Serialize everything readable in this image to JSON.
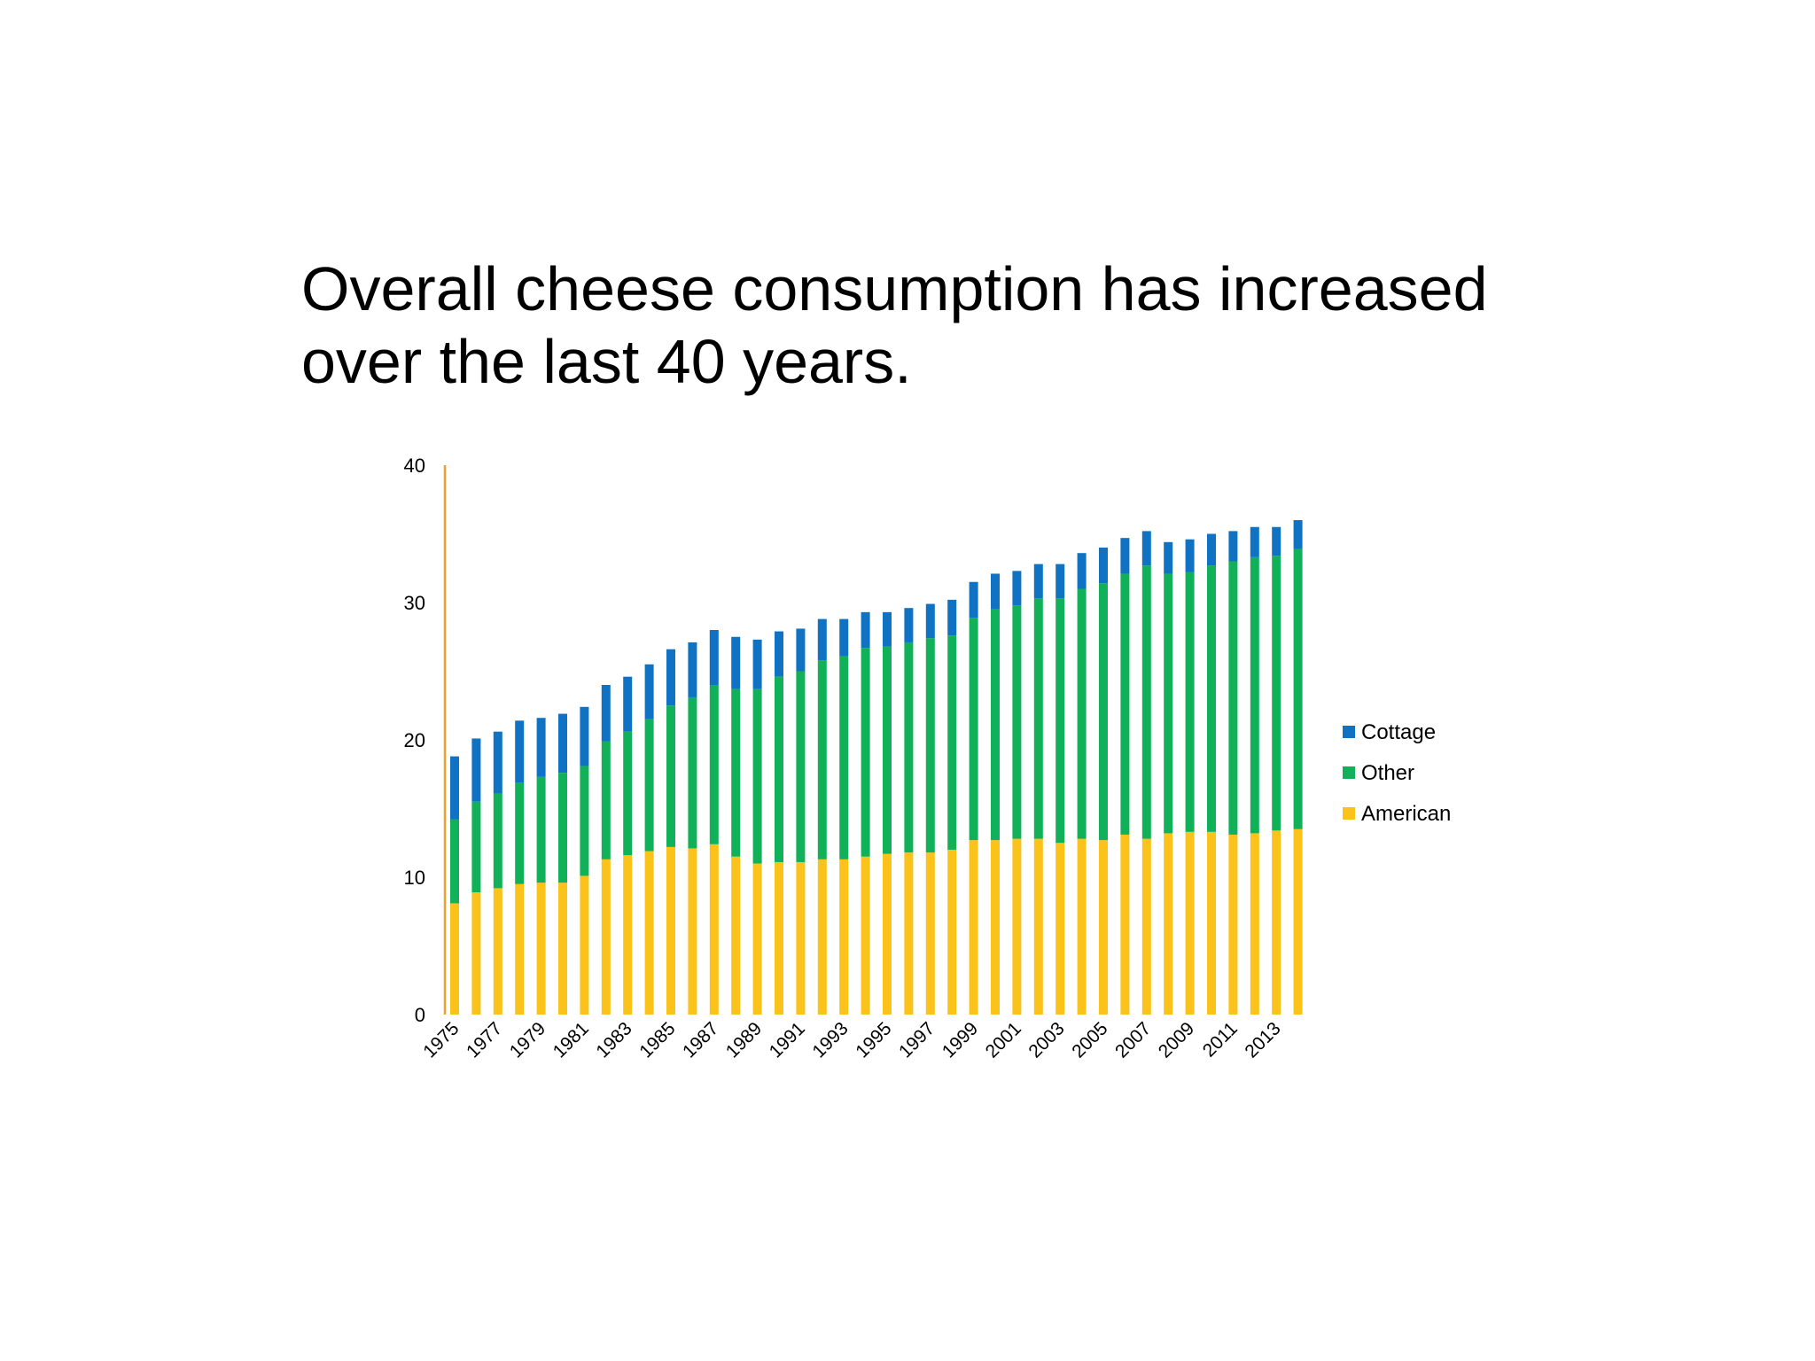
{
  "slide": {
    "title_line1": "Overall cheese consumption has increased",
    "title_line2": "over the last 40 years."
  },
  "chart_data": {
    "type": "bar",
    "stacked": true,
    "categories": [
      "1975",
      "1976",
      "1977",
      "1978",
      "1979",
      "1980",
      "1981",
      "1982",
      "1983",
      "1984",
      "1985",
      "1986",
      "1987",
      "1988",
      "1989",
      "1990",
      "1991",
      "1992",
      "1993",
      "1994",
      "1995",
      "1996",
      "1997",
      "1998",
      "1999",
      "2000",
      "2001",
      "2002",
      "2003",
      "2004",
      "2005",
      "2006",
      "2007",
      "2008",
      "2009",
      "2010",
      "2011",
      "2012",
      "2013",
      "2014"
    ],
    "tick_labels": [
      "1975",
      "1977",
      "1979",
      "1981",
      "1983",
      "1985",
      "1987",
      "1989",
      "1991",
      "1993",
      "1995",
      "1997",
      "1999",
      "2001",
      "2003",
      "2005",
      "2007",
      "2009",
      "2011",
      "2013"
    ],
    "series": [
      {
        "name": "American",
        "color": "#FBC21A",
        "values": [
          8.1,
          8.9,
          9.2,
          9.5,
          9.6,
          9.6,
          10.1,
          11.3,
          11.6,
          11.9,
          12.2,
          12.1,
          12.4,
          11.5,
          11.0,
          11.1,
          11.1,
          11.3,
          11.3,
          11.5,
          11.7,
          11.8,
          11.8,
          12.0,
          12.7,
          12.7,
          12.8,
          12.8,
          12.5,
          12.8,
          12.7,
          13.1,
          12.8,
          13.2,
          13.3,
          13.3,
          13.1,
          13.2,
          13.4,
          13.5
        ]
      },
      {
        "name": "Other",
        "color": "#10B158",
        "values": [
          6.1,
          6.6,
          6.9,
          7.4,
          7.7,
          8.0,
          8.0,
          8.6,
          9.0,
          9.6,
          10.3,
          11.0,
          11.6,
          12.2,
          12.7,
          13.5,
          13.9,
          14.5,
          14.8,
          15.2,
          15.1,
          15.3,
          15.6,
          15.6,
          16.2,
          16.8,
          17.0,
          17.5,
          17.8,
          18.2,
          18.7,
          19.0,
          19.9,
          18.9,
          18.9,
          19.4,
          19.9,
          20.1,
          20.0,
          20.4
        ]
      },
      {
        "name": "Cottage",
        "color": "#1072C2",
        "values": [
          4.6,
          4.6,
          4.5,
          4.5,
          4.3,
          4.3,
          4.3,
          4.1,
          4.0,
          4.0,
          4.1,
          4.0,
          4.0,
          3.8,
          3.6,
          3.3,
          3.1,
          3.0,
          2.7,
          2.6,
          2.5,
          2.5,
          2.5,
          2.6,
          2.6,
          2.6,
          2.5,
          2.5,
          2.5,
          2.6,
          2.6,
          2.6,
          2.5,
          2.3,
          2.4,
          2.3,
          2.2,
          2.2,
          2.1,
          2.1
        ]
      }
    ],
    "legend_order": [
      "Cottage",
      "Other",
      "American"
    ],
    "legend_position": "right",
    "ylim": [
      0,
      40
    ],
    "yticks": [
      0,
      10,
      20,
      30,
      40
    ],
    "y_axis_color": "#F0A030",
    "grid": false,
    "title": "",
    "xlabel": "",
    "ylabel": ""
  }
}
